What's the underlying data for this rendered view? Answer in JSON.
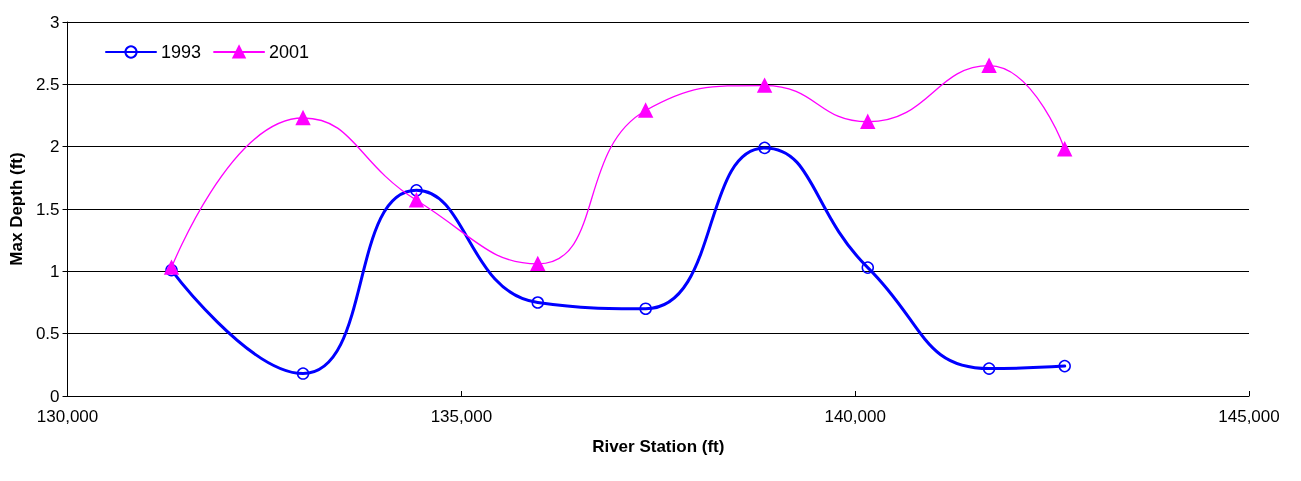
{
  "chart_data": {
    "type": "line",
    "xlabel": "River Station (ft)",
    "ylabel": "Max Depth (ft)",
    "xlim": [
      130000,
      145000
    ],
    "xticks": [
      {
        "value": 130000,
        "label": "130,000"
      },
      {
        "value": 135000,
        "label": "135,000"
      },
      {
        "value": 140000,
        "label": "140,000"
      },
      {
        "value": 145000,
        "label": "145,000"
      }
    ],
    "ylim": [
      0,
      3
    ],
    "yticks": [
      0,
      0.5,
      1,
      1.5,
      2,
      2.5,
      3
    ],
    "grid": "y",
    "legend": "top left",
    "line_style": "solid",
    "x": [
      131320,
      132990,
      134430,
      135970,
      137340,
      138850,
      140160,
      141700,
      142660
    ],
    "series": [
      {
        "name": "1993",
        "color": "#0000ff",
        "marker": "circle",
        "values": [
          1.01,
          0.18,
          1.65,
          0.75,
          0.7,
          1.99,
          1.03,
          0.22,
          0.24
        ]
      },
      {
        "name": "2001",
        "color": "#ff00ff",
        "marker": "triangle",
        "values": [
          1.03,
          2.23,
          1.57,
          1.06,
          2.29,
          2.49,
          2.2,
          2.65,
          1.98
        ]
      }
    ]
  }
}
